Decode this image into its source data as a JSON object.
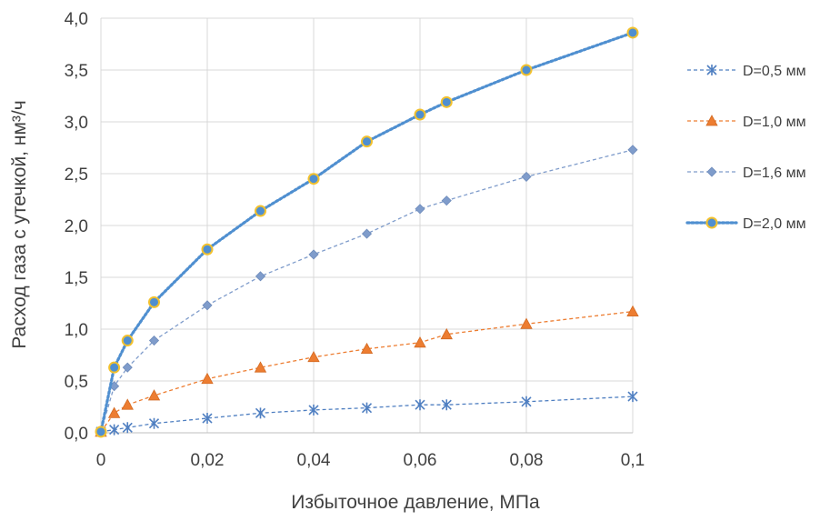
{
  "chart_data": {
    "type": "line",
    "title": "",
    "xlabel": "Избыточное давление, МПа",
    "ylabel": "Расход газа с утечкой, нм³/ч",
    "xlim": [
      0,
      0.1
    ],
    "ylim": [
      0,
      4.0
    ],
    "x_ticks": [
      "0",
      "0,02",
      "0,04",
      "0,06",
      "0,08",
      "0,1"
    ],
    "y_ticks": [
      "0,0",
      "0,5",
      "1,0",
      "1,5",
      "2,0",
      "2,5",
      "3,0",
      "3,5",
      "4,0"
    ],
    "grid": true,
    "legend_position": "right",
    "series": [
      {
        "name": "D=0,5 мм",
        "marker": "asterisk",
        "line_style": "dashed",
        "color": "#4f7fc1",
        "x": [
          0,
          0.0025,
          0.005,
          0.01,
          0.02,
          0.03,
          0.04,
          0.05,
          0.06,
          0.065,
          0.08,
          0.1
        ],
        "y": [
          0.01,
          0.03,
          0.05,
          0.09,
          0.14,
          0.19,
          0.22,
          0.24,
          0.27,
          0.27,
          0.3,
          0.35
        ]
      },
      {
        "name": "D=1,0 мм",
        "marker": "triangle",
        "line_style": "dashed",
        "color": "#ed7d31",
        "x": [
          0,
          0.0025,
          0.005,
          0.01,
          0.02,
          0.03,
          0.04,
          0.05,
          0.06,
          0.065,
          0.08,
          0.1
        ],
        "y": [
          0.01,
          0.19,
          0.27,
          0.36,
          0.52,
          0.63,
          0.73,
          0.81,
          0.87,
          0.95,
          1.05,
          1.17
        ]
      },
      {
        "name": "D=1,6 мм",
        "marker": "diamond",
        "line_style": "dashed",
        "color": "#7f9ccb",
        "x": [
          0,
          0.0025,
          0.005,
          0.01,
          0.02,
          0.03,
          0.04,
          0.05,
          0.06,
          0.065,
          0.08,
          0.1
        ],
        "y": [
          0.01,
          0.45,
          0.63,
          0.89,
          1.23,
          1.51,
          1.72,
          1.92,
          2.16,
          2.24,
          2.47,
          2.73
        ]
      },
      {
        "name": "D=2,0 мм",
        "marker": "circle",
        "line_style": "dotted",
        "color": "#4f8fd0",
        "marker_edge": "#f2c12e",
        "x": [
          0,
          0.0025,
          0.005,
          0.01,
          0.02,
          0.03,
          0.04,
          0.05,
          0.06,
          0.065,
          0.08,
          0.1
        ],
        "y": [
          0.01,
          0.63,
          0.89,
          1.26,
          1.77,
          2.14,
          2.45,
          2.81,
          3.07,
          3.19,
          3.5,
          3.86
        ]
      }
    ]
  }
}
